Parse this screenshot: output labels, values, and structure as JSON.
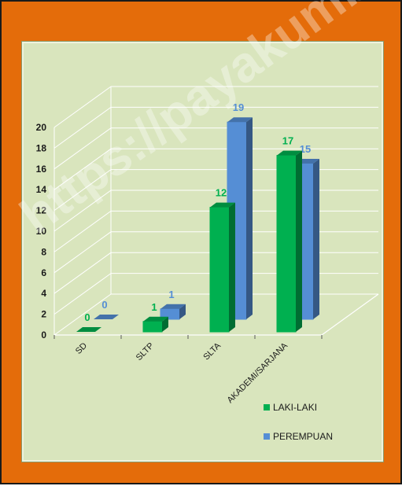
{
  "watermark": "https://payakumb",
  "colors": {
    "frame": "#e46c0a",
    "plot_bg": "#d9e5bd",
    "laki": "#00b050",
    "perempuan": "#558ed5",
    "laki_label": "#00b050",
    "perempuan_label": "#558ed5"
  },
  "chart_data": {
    "type": "bar",
    "style": "3d-clustered-column",
    "categories": [
      "SD",
      "SLTP",
      "SLTA",
      "AKADEMI/SARJANA"
    ],
    "series": [
      {
        "name": "LAKI-LAKI",
        "values": [
          0,
          1,
          12,
          17
        ]
      },
      {
        "name": "PEREMPUAN",
        "values": [
          0,
          1,
          19,
          15
        ]
      }
    ],
    "yticks": [
      "0",
      "2",
      "4",
      "6",
      "8",
      "10",
      "12",
      "14",
      "16",
      "18",
      "20"
    ],
    "ylim": [
      0,
      20
    ],
    "grid": true,
    "legend": "bottom-right",
    "title": "",
    "xlabel": "",
    "ylabel": ""
  }
}
